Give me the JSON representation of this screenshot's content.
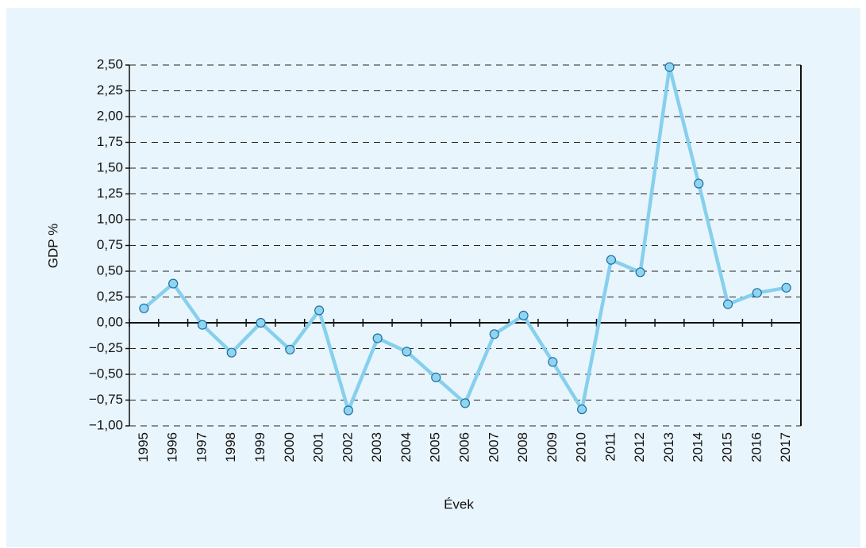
{
  "chart_data": {
    "type": "line",
    "xlabel": "Évek",
    "ylabel": "GDP %",
    "categories": [
      "1995",
      "1996",
      "1997",
      "1998",
      "1999",
      "2000",
      "2001",
      "2002",
      "2003",
      "2004",
      "2005",
      "2006",
      "2007",
      "2008",
      "2009",
      "2010",
      "2011",
      "2012",
      "2013",
      "2014",
      "2015",
      "2016",
      "2017"
    ],
    "values": [
      0.14,
      0.38,
      -0.02,
      -0.29,
      0.0,
      -0.26,
      0.12,
      -0.85,
      -0.15,
      -0.28,
      -0.53,
      -0.78,
      -0.11,
      0.07,
      -0.38,
      -0.84,
      0.61,
      0.49,
      2.48,
      1.35,
      0.18,
      0.29,
      0.34
    ],
    "color": "#86d0ee",
    "marker_color": "#8fd4f1",
    "marker_edge": "#1f6f9f",
    "ylim": [
      -1,
      2.5
    ],
    "yticks": [
      {
        "value": -1,
        "label": "−1,00"
      },
      {
        "value": -0.75,
        "label": "−0,75"
      },
      {
        "value": -0.5,
        "label": "−0,50"
      },
      {
        "value": -0.25,
        "label": "−0,25"
      },
      {
        "value": 0,
        "label": "0,00"
      },
      {
        "value": 0.25,
        "label": "0,25"
      },
      {
        "value": 0.5,
        "label": "0,50"
      },
      {
        "value": 0.75,
        "label": "0,75"
      },
      {
        "value": 1,
        "label": "1,00"
      },
      {
        "value": 1.25,
        "label": "1,25"
      },
      {
        "value": 1.5,
        "label": "1,50"
      },
      {
        "value": 1.75,
        "label": "1,75"
      },
      {
        "value": 2,
        "label": "2,00"
      },
      {
        "value": 2.25,
        "label": "2,25"
      },
      {
        "value": 2.5,
        "label": "2,50"
      }
    ],
    "grid": true
  }
}
